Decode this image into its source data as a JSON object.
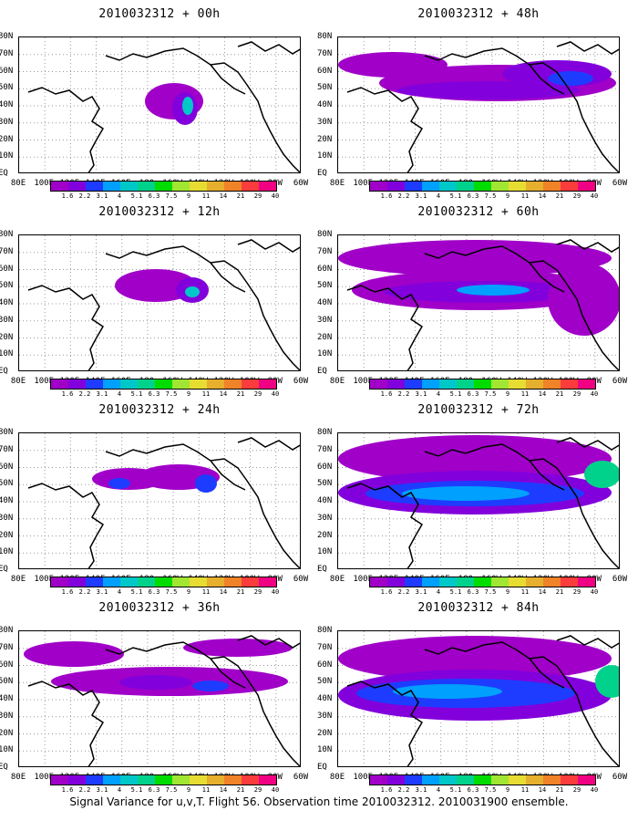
{
  "footer": "Signal Variance for u,v,T. Flight 56. Observation time 2010032312. 2010031900 ensemble.",
  "lat_labels": [
    "80N",
    "70N",
    "60N",
    "50N",
    "40N",
    "30N",
    "20N",
    "10N",
    "EQ"
  ],
  "lon_labels": [
    "80E",
    "100E",
    "120E",
    "140E",
    "160E",
    "180",
    "160W",
    "140W",
    "120W",
    "100W",
    "80W",
    "60W"
  ],
  "colorbar": {
    "labels": [
      "1.6",
      "2.2",
      "3.1",
      "4",
      "5.1",
      "6.3",
      "7.5",
      "9",
      "11",
      "14",
      "21",
      "29",
      "40"
    ],
    "colors": [
      "#a000c8",
      "#8200dc",
      "#1e3cff",
      "#00a0ff",
      "#00c8c8",
      "#00d28c",
      "#00dc00",
      "#a0e632",
      "#e6dc32",
      "#e6af2d",
      "#f08228",
      "#fa3c3c",
      "#f00082"
    ]
  },
  "chart_data": [
    {
      "type": "heatmap",
      "title": "2010032312 + 00h",
      "lead_hours": 0,
      "extent": "localized",
      "max_level": "6.3"
    },
    {
      "type": "heatmap",
      "title": "2010032312 + 12h",
      "lead_hours": 12,
      "extent": "localized",
      "max_level": "5.1"
    },
    {
      "type": "heatmap",
      "title": "2010032312 + 24h",
      "lead_hours": 24,
      "extent": "regional",
      "max_level": "4"
    },
    {
      "type": "heatmap",
      "title": "2010032312 + 36h",
      "lead_hours": 36,
      "extent": "basin-wide",
      "max_level": "4"
    },
    {
      "type": "heatmap",
      "title": "2010032312 + 48h",
      "lead_hours": 48,
      "extent": "basin-wide",
      "max_level": "4"
    },
    {
      "type": "heatmap",
      "title": "2010032312 + 60h",
      "lead_hours": 60,
      "extent": "basin-wide",
      "max_level": "5.1"
    },
    {
      "type": "heatmap",
      "title": "2010032312 + 72h",
      "lead_hours": 72,
      "extent": "basin-wide",
      "max_level": "7.5"
    },
    {
      "type": "heatmap",
      "title": "2010032312 + 84h",
      "lead_hours": 84,
      "extent": "basin-wide",
      "max_level": "7.5"
    }
  ]
}
